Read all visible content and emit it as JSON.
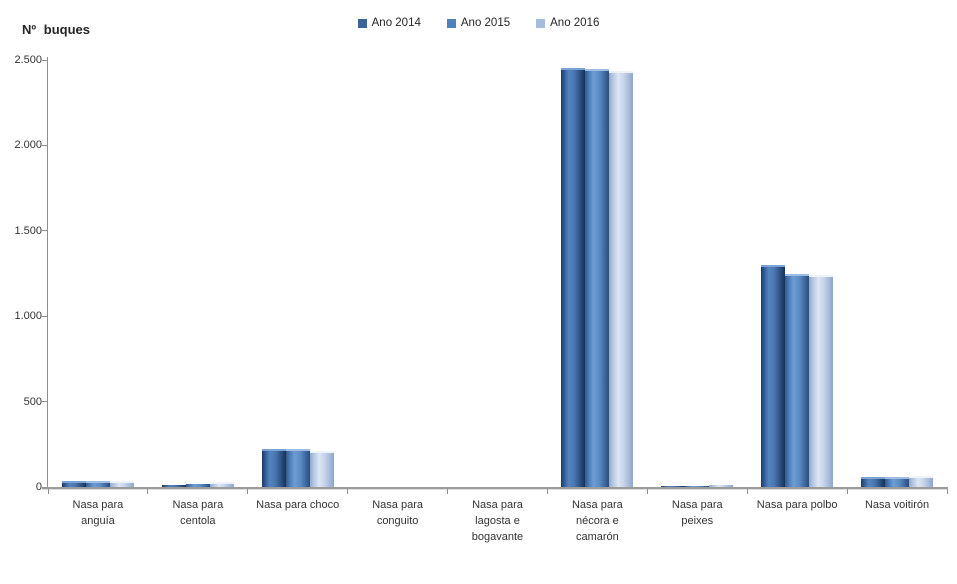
{
  "title": "Nº buques",
  "legend": [
    {
      "label": "Ano 2014",
      "color": "#38639B"
    },
    {
      "label": "Ano 2015",
      "color": "#4F81BD"
    },
    {
      "label": "Ano 2016",
      "color": "#A7BDDE"
    }
  ],
  "chart_data": {
    "type": "bar",
    "title": "Nº buques",
    "xlabel": "",
    "ylabel": "Nº buques",
    "grid": false,
    "legend_position": "top-center",
    "ylim": [
      0,
      2500
    ],
    "y_ticks": [
      {
        "value": 0,
        "label": "0"
      },
      {
        "value": 500,
        "label": "500"
      },
      {
        "value": 1000,
        "label": "1.000"
      },
      {
        "value": 1500,
        "label": "1.500"
      },
      {
        "value": 2000,
        "label": "2.000"
      },
      {
        "value": 2500,
        "label": "2.500"
      }
    ],
    "categories": [
      "Nasa para anguía",
      "Nasa para centola",
      "Nasa para choco",
      "Nasa para conguito",
      "Nasa para lagosta e bogavante",
      "Nasa para nécora e camarón",
      "Nasa para peixes",
      "Nasa para polbo",
      "Nasa voitirón"
    ],
    "series": [
      {
        "name": "Ano 2014",
        "color": "#38639B",
        "values": [
          38,
          10,
          225,
          0,
          0,
          2455,
          8,
          1300,
          60
        ]
      },
      {
        "name": "Ano 2015",
        "color": "#4F81BD",
        "values": [
          38,
          16,
          222,
          0,
          0,
          2445,
          8,
          1245,
          60
        ]
      },
      {
        "name": "Ano 2016",
        "color": "#A7BDDE",
        "values": [
          35,
          28,
          210,
          0,
          0,
          2438,
          10,
          1243,
          62
        ]
      }
    ]
  },
  "colors": {
    "axis": "#8e8e8e",
    "text": "#333333",
    "background": "#ffffff"
  }
}
